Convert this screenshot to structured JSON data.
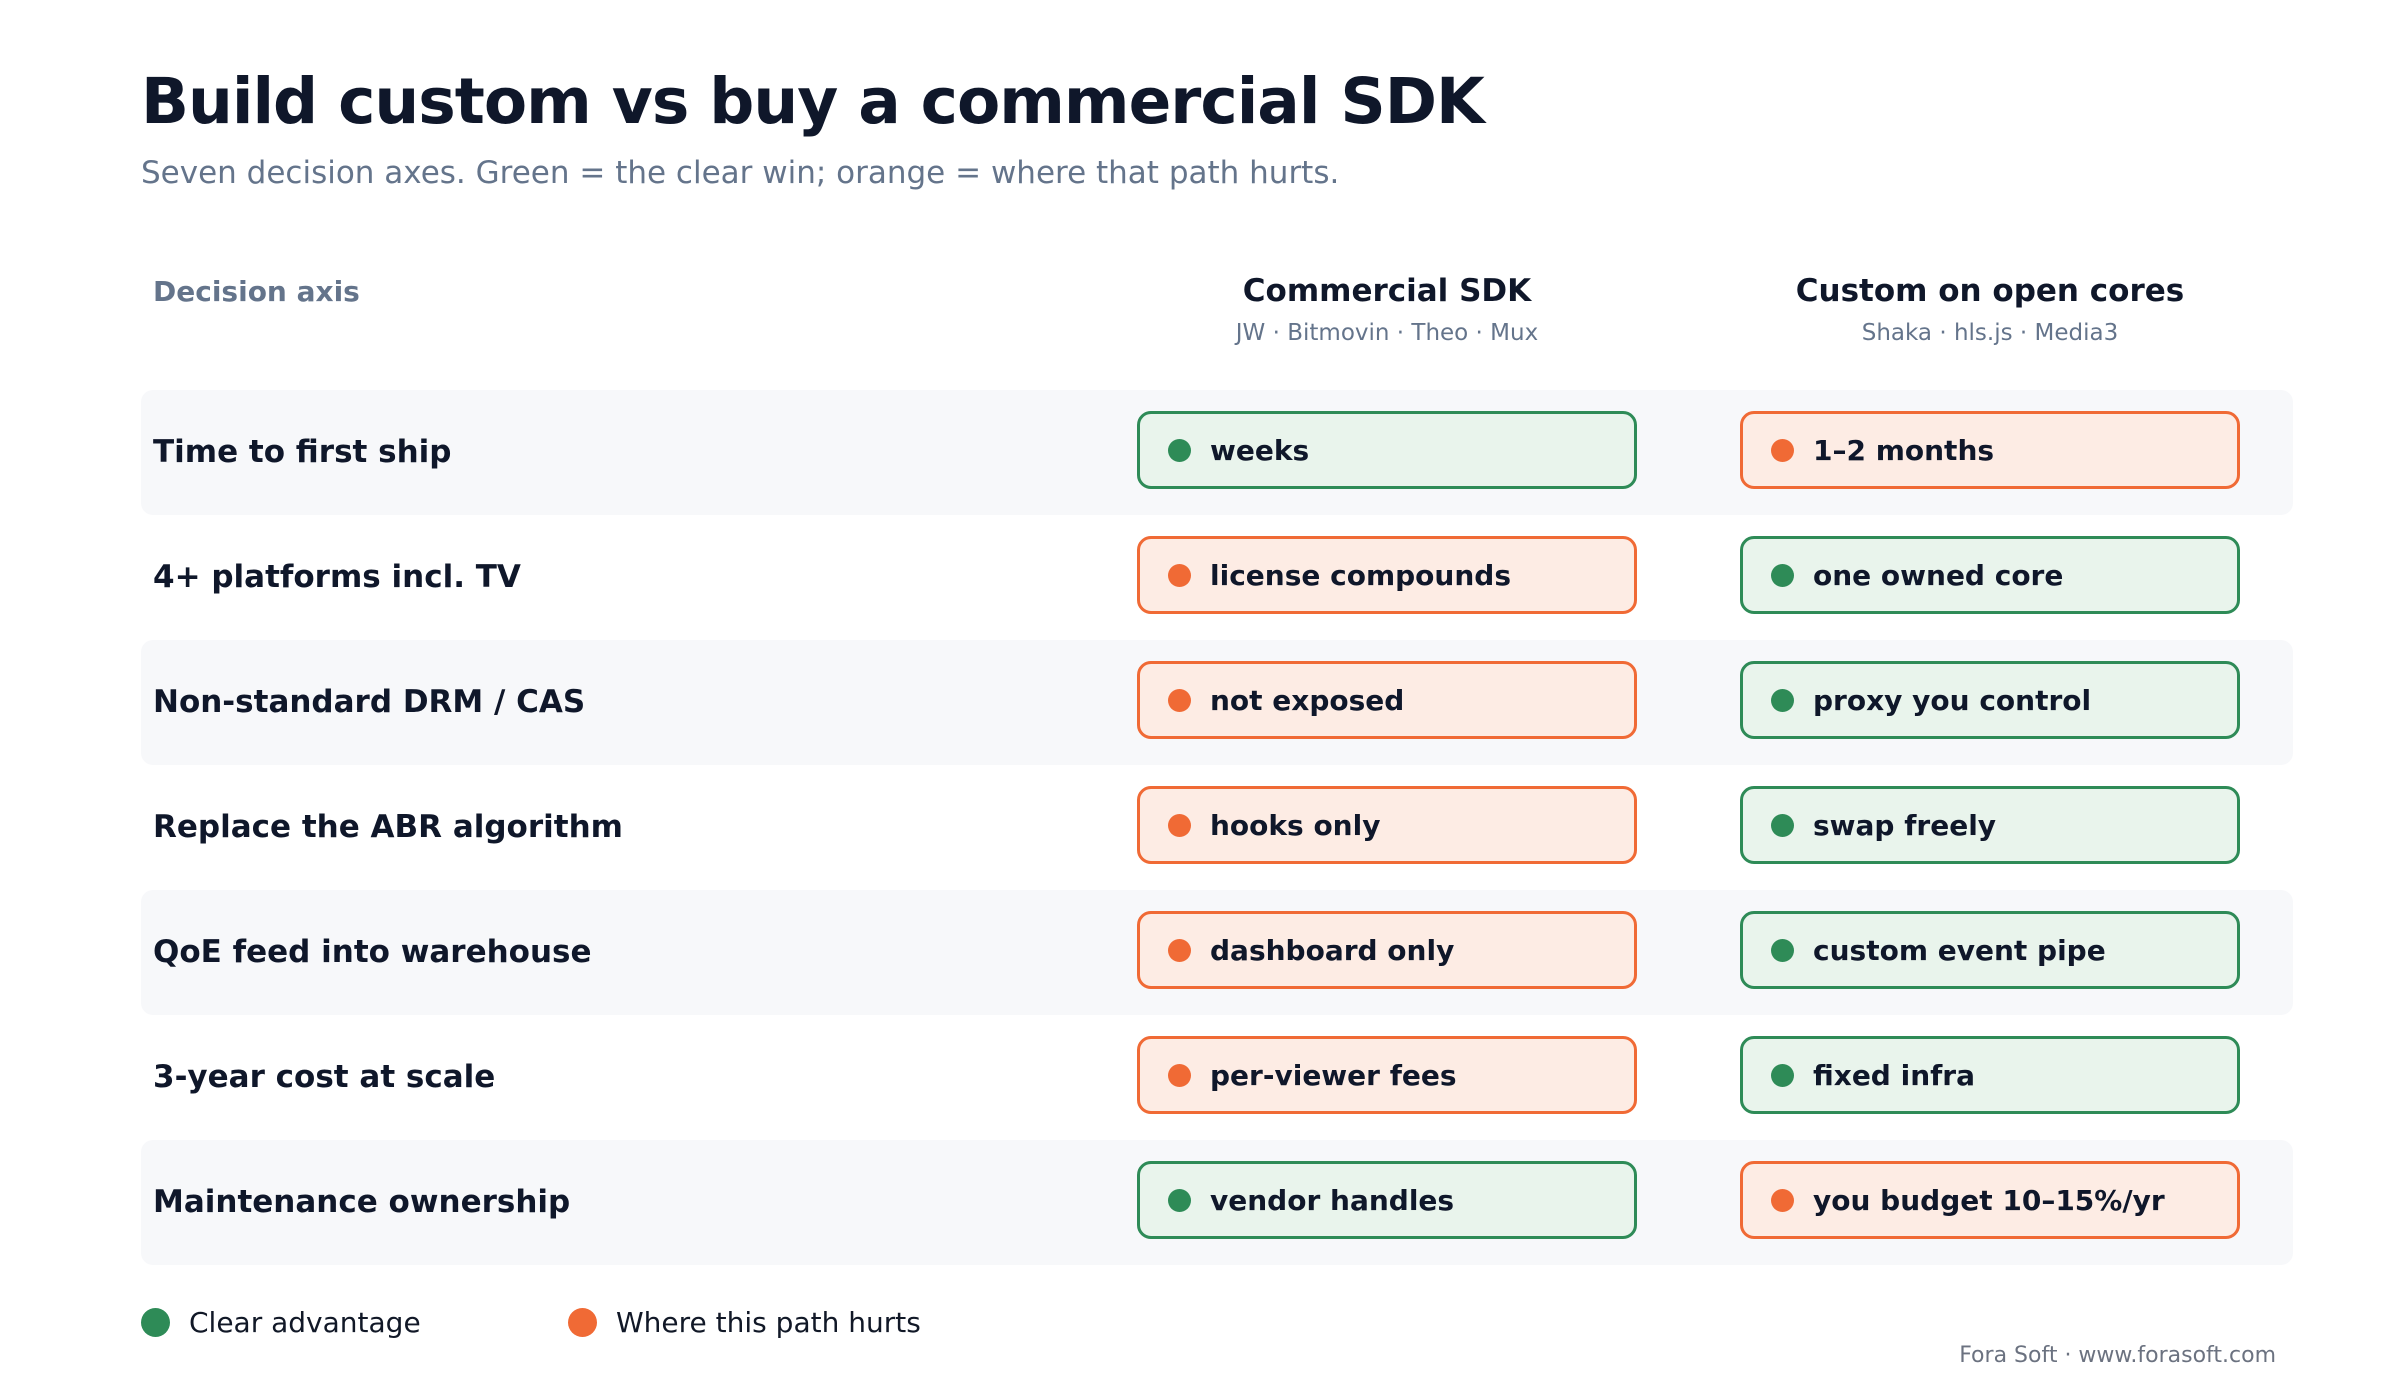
{
  "title": "Build custom vs buy a commercial SDK",
  "subtitle": "Seven decision axes. Green = the clear win; orange = where that path hurts.",
  "header": {
    "axis": "Decision axis",
    "columns": [
      {
        "title": "Commercial SDK",
        "vendors": "JW · Bitmovin · Theo · Mux"
      },
      {
        "title": "Custom on open cores",
        "vendors": "Shaka · hls.js · Media3"
      }
    ]
  },
  "colors": {
    "good": "#2e8b57",
    "good_bg": "#e9f4ec",
    "bad": "#f06a35",
    "bad_bg": "#fdece4"
  },
  "rows": [
    {
      "axis": "Time to first ship",
      "commercial": {
        "text": "weeks",
        "status": "good"
      },
      "custom": {
        "text": "1–2 months",
        "status": "bad"
      }
    },
    {
      "axis": "4+ platforms incl. TV",
      "commercial": {
        "text": "license compounds",
        "status": "bad"
      },
      "custom": {
        "text": "one owned core",
        "status": "good"
      }
    },
    {
      "axis": "Non-standard DRM / CAS",
      "commercial": {
        "text": "not exposed",
        "status": "bad"
      },
      "custom": {
        "text": "proxy you control",
        "status": "good"
      }
    },
    {
      "axis": "Replace the ABR algorithm",
      "commercial": {
        "text": "hooks only",
        "status": "bad"
      },
      "custom": {
        "text": "swap freely",
        "status": "good"
      }
    },
    {
      "axis": "QoE feed into warehouse",
      "commercial": {
        "text": "dashboard only",
        "status": "bad"
      },
      "custom": {
        "text": "custom event pipe",
        "status": "good"
      }
    },
    {
      "axis": "3-year cost at scale",
      "commercial": {
        "text": "per-viewer fees",
        "status": "bad"
      },
      "custom": {
        "text": "fixed infra",
        "status": "good"
      }
    },
    {
      "axis": "Maintenance ownership",
      "commercial": {
        "text": "vendor handles",
        "status": "good"
      },
      "custom": {
        "text": "you budget 10–15%/yr",
        "status": "bad"
      }
    }
  ],
  "legend": {
    "good": "Clear advantage",
    "bad": "Where this path hurts"
  },
  "footer": "Fora Soft · www.forasoft.com"
}
